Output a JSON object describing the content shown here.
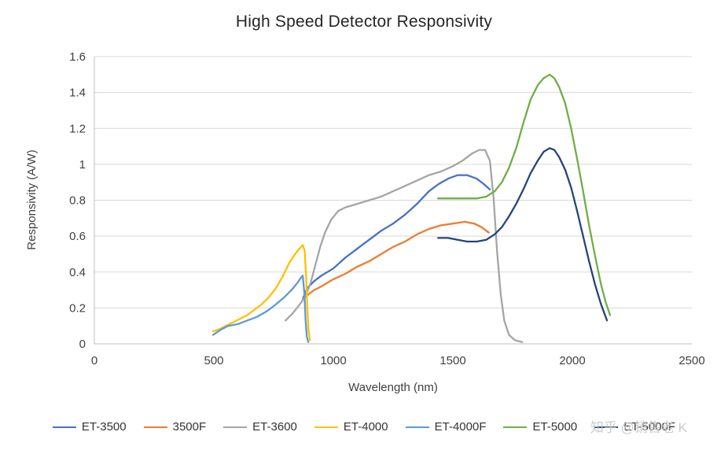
{
  "watermark": {
    "text": "知乎 @销售老 K"
  },
  "chart_data": {
    "type": "line",
    "title": "High Speed Detector Responsivity",
    "xlabel": "Wavelength (nm)",
    "ylabel": "Responsivity (A/W)",
    "xlim": [
      0,
      2500
    ],
    "ylim": [
      0,
      1.6
    ],
    "xticks": [
      0,
      500,
      1000,
      1500,
      2000,
      2500
    ],
    "yticks": [
      0,
      0.2,
      0.4,
      0.6,
      0.8,
      1,
      1.2,
      1.4,
      1.6
    ],
    "grid": "horizontal",
    "legend_position": "bottom",
    "colors": {
      "grid": "#d9d9d9",
      "axis": "#bfbfbf",
      "text": "#404040",
      "watermark": "#c6c6c6"
    },
    "series": [
      {
        "name": "ET-3500",
        "color": "#4472C4",
        "points": [
          [
            872,
            0.25
          ],
          [
            890,
            0.31
          ],
          [
            920,
            0.35
          ],
          [
            950,
            0.38
          ],
          [
            1000,
            0.42
          ],
          [
            1050,
            0.48
          ],
          [
            1100,
            0.53
          ],
          [
            1150,
            0.58
          ],
          [
            1200,
            0.63
          ],
          [
            1250,
            0.67
          ],
          [
            1300,
            0.72
          ],
          [
            1350,
            0.78
          ],
          [
            1400,
            0.85
          ],
          [
            1440,
            0.89
          ],
          [
            1480,
            0.92
          ],
          [
            1520,
            0.94
          ],
          [
            1560,
            0.94
          ],
          [
            1600,
            0.92
          ],
          [
            1630,
            0.89
          ],
          [
            1655,
            0.86
          ]
        ]
      },
      {
        "name": "3500F",
        "color": "#ED7D31",
        "points": [
          [
            872,
            0.25
          ],
          [
            890,
            0.27
          ],
          [
            920,
            0.3
          ],
          [
            950,
            0.32
          ],
          [
            1000,
            0.36
          ],
          [
            1050,
            0.39
          ],
          [
            1100,
            0.43
          ],
          [
            1150,
            0.46
          ],
          [
            1200,
            0.5
          ],
          [
            1250,
            0.54
          ],
          [
            1300,
            0.57
          ],
          [
            1350,
            0.61
          ],
          [
            1400,
            0.64
          ],
          [
            1450,
            0.66
          ],
          [
            1500,
            0.67
          ],
          [
            1550,
            0.68
          ],
          [
            1590,
            0.67
          ],
          [
            1620,
            0.65
          ],
          [
            1650,
            0.62
          ]
        ]
      },
      {
        "name": "ET-3600",
        "color": "#A5A5A5",
        "points": [
          [
            800,
            0.13
          ],
          [
            830,
            0.17
          ],
          [
            860,
            0.22
          ],
          [
            885,
            0.27
          ],
          [
            905,
            0.34
          ],
          [
            925,
            0.44
          ],
          [
            945,
            0.54
          ],
          [
            965,
            0.62
          ],
          [
            990,
            0.69
          ],
          [
            1020,
            0.74
          ],
          [
            1050,
            0.76
          ],
          [
            1100,
            0.78
          ],
          [
            1150,
            0.8
          ],
          [
            1200,
            0.82
          ],
          [
            1250,
            0.85
          ],
          [
            1300,
            0.88
          ],
          [
            1350,
            0.91
          ],
          [
            1400,
            0.94
          ],
          [
            1450,
            0.96
          ],
          [
            1500,
            0.99
          ],
          [
            1540,
            1.02
          ],
          [
            1580,
            1.06
          ],
          [
            1610,
            1.08
          ],
          [
            1635,
            1.08
          ],
          [
            1655,
            1.02
          ],
          [
            1670,
            0.82
          ],
          [
            1685,
            0.52
          ],
          [
            1700,
            0.28
          ],
          [
            1715,
            0.13
          ],
          [
            1735,
            0.05
          ],
          [
            1760,
            0.02
          ],
          [
            1790,
            0.01
          ]
        ]
      },
      {
        "name": "ET-4000",
        "color": "#FFC000",
        "points": [
          [
            497,
            0.07
          ],
          [
            520,
            0.08
          ],
          [
            550,
            0.1
          ],
          [
            580,
            0.12
          ],
          [
            610,
            0.14
          ],
          [
            640,
            0.16
          ],
          [
            670,
            0.19
          ],
          [
            700,
            0.22
          ],
          [
            730,
            0.26
          ],
          [
            760,
            0.31
          ],
          [
            790,
            0.38
          ],
          [
            815,
            0.45
          ],
          [
            840,
            0.5
          ],
          [
            858,
            0.53
          ],
          [
            872,
            0.55
          ],
          [
            880,
            0.52
          ],
          [
            886,
            0.38
          ],
          [
            891,
            0.2
          ],
          [
            896,
            0.08
          ],
          [
            902,
            0.02
          ]
        ]
      },
      {
        "name": "ET-4000F",
        "color": "#5B9BD5",
        "points": [
          [
            497,
            0.05
          ],
          [
            530,
            0.08
          ],
          [
            560,
            0.1
          ],
          [
            600,
            0.11
          ],
          [
            640,
            0.13
          ],
          [
            680,
            0.15
          ],
          [
            720,
            0.18
          ],
          [
            760,
            0.22
          ],
          [
            795,
            0.26
          ],
          [
            825,
            0.3
          ],
          [
            850,
            0.34
          ],
          [
            865,
            0.37
          ],
          [
            872,
            0.38
          ],
          [
            879,
            0.28
          ],
          [
            884,
            0.13
          ],
          [
            889,
            0.04
          ],
          [
            895,
            0.01
          ]
        ]
      },
      {
        "name": "ET-5000",
        "color": "#70AD47",
        "points": [
          [
            1438,
            0.81
          ],
          [
            1480,
            0.81
          ],
          [
            1520,
            0.81
          ],
          [
            1560,
            0.81
          ],
          [
            1600,
            0.81
          ],
          [
            1640,
            0.82
          ],
          [
            1675,
            0.85
          ],
          [
            1705,
            0.9
          ],
          [
            1735,
            0.98
          ],
          [
            1765,
            1.09
          ],
          [
            1795,
            1.23
          ],
          [
            1825,
            1.36
          ],
          [
            1855,
            1.44
          ],
          [
            1880,
            1.48
          ],
          [
            1905,
            1.5
          ],
          [
            1925,
            1.48
          ],
          [
            1945,
            1.43
          ],
          [
            1970,
            1.34
          ],
          [
            1995,
            1.2
          ],
          [
            2020,
            1.03
          ],
          [
            2045,
            0.85
          ],
          [
            2070,
            0.66
          ],
          [
            2095,
            0.49
          ],
          [
            2120,
            0.33
          ],
          [
            2140,
            0.23
          ],
          [
            2158,
            0.16
          ]
        ]
      },
      {
        "name": "ET-5000F",
        "color": "#264478",
        "points": [
          [
            1438,
            0.59
          ],
          [
            1480,
            0.59
          ],
          [
            1520,
            0.58
          ],
          [
            1560,
            0.57
          ],
          [
            1600,
            0.57
          ],
          [
            1640,
            0.58
          ],
          [
            1675,
            0.61
          ],
          [
            1705,
            0.65
          ],
          [
            1735,
            0.71
          ],
          [
            1765,
            0.78
          ],
          [
            1795,
            0.86
          ],
          [
            1825,
            0.95
          ],
          [
            1855,
            1.02
          ],
          [
            1880,
            1.07
          ],
          [
            1905,
            1.09
          ],
          [
            1925,
            1.08
          ],
          [
            1945,
            1.04
          ],
          [
            1970,
            0.97
          ],
          [
            1995,
            0.87
          ],
          [
            2020,
            0.74
          ],
          [
            2045,
            0.6
          ],
          [
            2070,
            0.46
          ],
          [
            2095,
            0.33
          ],
          [
            2120,
            0.22
          ],
          [
            2145,
            0.13
          ]
        ]
      }
    ]
  }
}
